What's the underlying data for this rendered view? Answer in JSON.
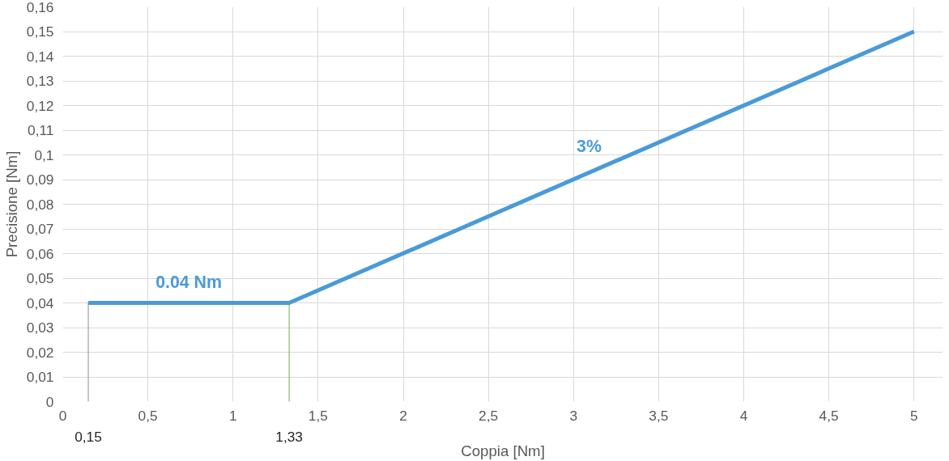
{
  "chart_data": {
    "type": "line",
    "xlabel": "Coppia [Nm]",
    "ylabel": "Precisione [Nm]",
    "x": [
      0.15,
      1.33,
      5
    ],
    "series": [
      {
        "color": "#4a9ad8",
        "values": [
          0.04,
          0.04,
          0.15
        ]
      }
    ],
    "xlim": [
      0,
      5.17
    ],
    "ylim": [
      0,
      0.16
    ],
    "xticks": [
      0,
      {
        "value": 0.5,
        "label": "0,5"
      },
      1,
      {
        "value": 1.5,
        "label": "1,5"
      },
      2,
      {
        "value": 2.5,
        "label": "2,5"
      },
      3,
      {
        "value": 3.5,
        "label": "3,5"
      },
      4,
      {
        "value": 4.5,
        "label": "4,5"
      },
      5
    ],
    "yticks": [
      0,
      {
        "value": 0.01,
        "label": "0,01"
      },
      {
        "value": 0.02,
        "label": "0,02"
      },
      {
        "value": 0.03,
        "label": "0,03"
      },
      {
        "value": 0.04,
        "label": "0,04"
      },
      {
        "value": 0.05,
        "label": "0,05"
      },
      {
        "value": 0.06,
        "label": "0,06"
      },
      {
        "value": 0.07,
        "label": "0,07"
      },
      {
        "value": 0.08,
        "label": "0,08"
      },
      {
        "value": 0.09,
        "label": "0,09"
      },
      {
        "value": 0.1,
        "label": "0,1"
      },
      {
        "value": 0.11,
        "label": "0,11"
      },
      {
        "value": 0.12,
        "label": "0,12"
      },
      {
        "value": 0.13,
        "label": "0,13"
      },
      {
        "value": 0.14,
        "label": "0,14"
      },
      {
        "value": 0.15,
        "label": "0,15"
      },
      {
        "value": 0.16,
        "label": "0,16"
      }
    ],
    "ref_lines": [
      {
        "axis": "x",
        "value": 0.15,
        "label": "0,15",
        "color": "#8c8c9c"
      },
      {
        "axis": "x",
        "value": 1.33,
        "label": "1,33",
        "color": "#70ad47"
      }
    ],
    "annotations": [
      "0.04 Nm",
      "3%"
    ],
    "grid": true,
    "marker": "none",
    "line_style": "solid"
  }
}
